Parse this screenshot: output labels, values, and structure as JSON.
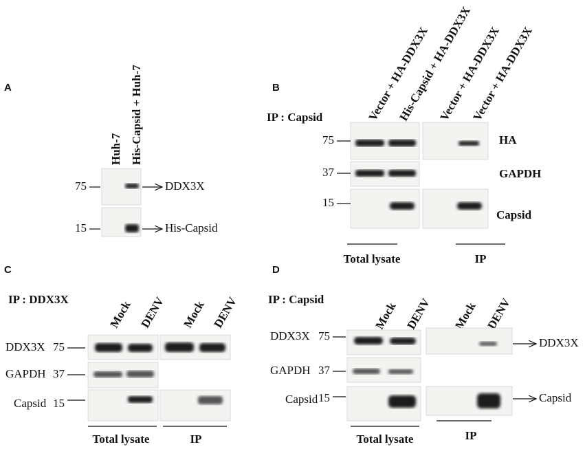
{
  "panels": [
    {
      "label": "A",
      "lanes": [
        "Huh-7",
        "His-Capsid + Huh-7"
      ],
      "markers": [
        75,
        15
      ],
      "targets": [
        "DDX3X",
        "His-Capsid"
      ]
    },
    {
      "label": "B",
      "ip": "IP : Capsid",
      "lanes": [
        "Vector + HA-DDX3X",
        "His-Capsid + HA-DDX3X",
        "Vector + HA-DDX3X",
        "Vector + HA-DDX3X"
      ],
      "markers": [
        75,
        37,
        15
      ],
      "targets": [
        "HA",
        "GAPDH",
        "Capsid"
      ],
      "groups": [
        "Total lysate",
        "IP"
      ]
    },
    {
      "label": "C",
      "ip": "IP : DDX3X",
      "lanes": [
        "Mock",
        "DENV",
        "Mock",
        "DENV"
      ],
      "rows": [
        "DDX3X",
        "GAPDH",
        "Capsid"
      ],
      "markers": [
        75,
        37,
        15
      ],
      "groups": [
        "Total lysate",
        "IP"
      ]
    },
    {
      "label": "D",
      "ip": "IP : Capsid",
      "lanes": [
        "Mock",
        "DENV",
        "Mock",
        "DENV"
      ],
      "rows": [
        "DDX3X",
        "GAPDH",
        "Capsid"
      ],
      "markers": [
        75,
        37,
        15
      ],
      "targets": [
        "DDX3X",
        "Capsid"
      ],
      "groups": [
        "Total lysate",
        "IP"
      ]
    }
  ]
}
